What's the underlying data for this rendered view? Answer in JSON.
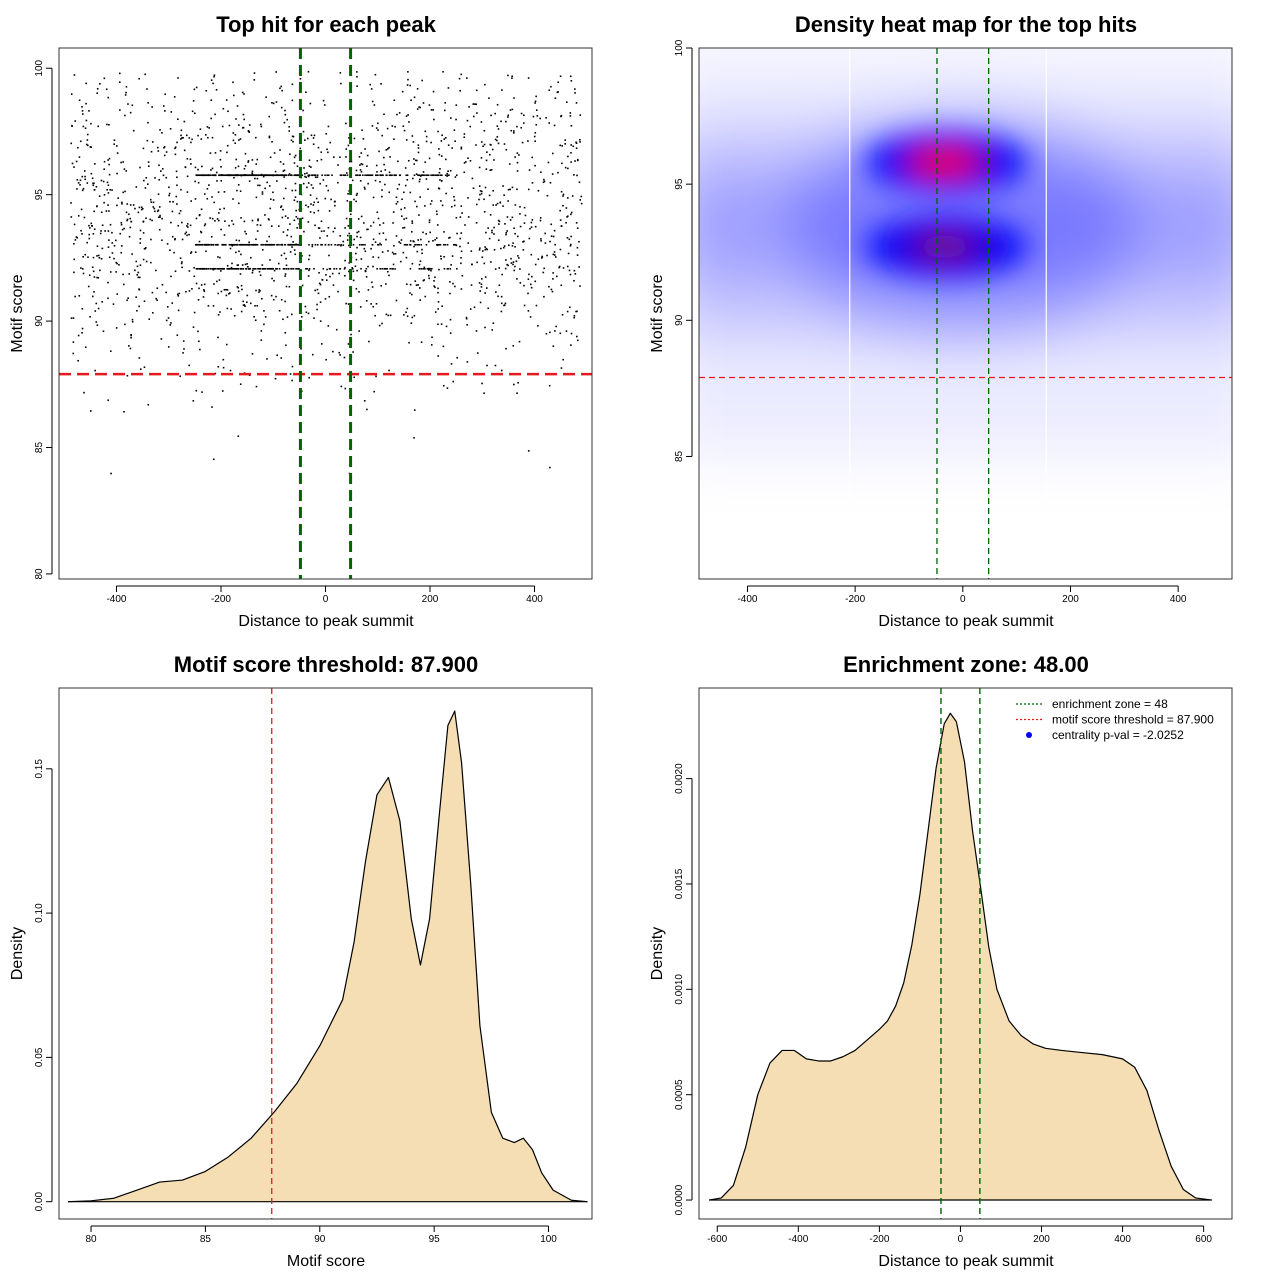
{
  "chart_data": [
    {
      "type": "scatter",
      "title": "Top hit for each peak",
      "xlabel": "Distance to peak summit",
      "ylabel": "Motif score",
      "xlim": [
        -510,
        510
      ],
      "ylim": [
        79.8,
        100.8
      ],
      "xticks": [
        -400,
        -200,
        0,
        200,
        400
      ],
      "yticks": [
        80,
        85,
        90,
        95,
        100
      ],
      "score_threshold": 87.9,
      "zone_lines": [
        -48,
        48
      ],
      "point_count": 2400,
      "score_clusters": [
        92.1,
        93.05,
        95.8
      ],
      "threshold_color": "#e41a1c",
      "zone_color": "#006400",
      "point_color": "#000000"
    },
    {
      "type": "heatmap",
      "title": "Density heat map for the top hits",
      "xlabel": "Distance to peak summit",
      "ylabel": "Motif score",
      "xlim": [
        -490,
        500
      ],
      "ylim": [
        80.5,
        100
      ],
      "xticks": [
        -400,
        -200,
        0,
        200,
        400
      ],
      "yticks": [
        85,
        90,
        95,
        100
      ],
      "hotspots": [
        {
          "x": -30,
          "y": 95.8,
          "peak": "red"
        },
        {
          "x": -30,
          "y": 92.7,
          "peak": "dark-red"
        }
      ],
      "score_threshold": 87.9,
      "zone_lines": [
        -48,
        48
      ],
      "white_lines": [
        -210,
        155
      ],
      "colors": [
        "#ffffff",
        "#0000ff",
        "#ff0000"
      ]
    },
    {
      "type": "area",
      "title": "Motif score threshold: 87.900",
      "xlabel": "Motif score",
      "ylabel": "Density",
      "xlim": [
        78.6,
        101.9
      ],
      "ylim": [
        -0.006,
        0.178
      ],
      "xticks": [
        80,
        85,
        90,
        95,
        100
      ],
      "yticks": [
        0.0,
        0.05,
        0.1,
        0.15
      ],
      "ytick_labels": [
        "0.00",
        "0.05",
        "0.10",
        "0.15"
      ],
      "threshold": 87.9,
      "fill_color": "#f5deb3",
      "points": [
        [
          79.0,
          0.0
        ],
        [
          80.0,
          0.0003
        ],
        [
          81.0,
          0.0012
        ],
        [
          82.0,
          0.004
        ],
        [
          83.0,
          0.0068
        ],
        [
          84.0,
          0.0075
        ],
        [
          85.0,
          0.0105
        ],
        [
          86.0,
          0.0155
        ],
        [
          87.0,
          0.022
        ],
        [
          88.0,
          0.031
        ],
        [
          89.0,
          0.041
        ],
        [
          90.0,
          0.054
        ],
        [
          91.0,
          0.07
        ],
        [
          91.5,
          0.09
        ],
        [
          92.0,
          0.118
        ],
        [
          92.5,
          0.141
        ],
        [
          93.0,
          0.147
        ],
        [
          93.5,
          0.132
        ],
        [
          94.0,
          0.098
        ],
        [
          94.4,
          0.082
        ],
        [
          94.8,
          0.098
        ],
        [
          95.2,
          0.132
        ],
        [
          95.6,
          0.165
        ],
        [
          95.9,
          0.17
        ],
        [
          96.2,
          0.152
        ],
        [
          96.6,
          0.11
        ],
        [
          97.0,
          0.061
        ],
        [
          97.5,
          0.031
        ],
        [
          98.0,
          0.022
        ],
        [
          98.5,
          0.0205
        ],
        [
          98.9,
          0.022
        ],
        [
          99.3,
          0.018
        ],
        [
          99.7,
          0.01
        ],
        [
          100.2,
          0.004
        ],
        [
          101.0,
          0.0005
        ],
        [
          101.7,
          0.0
        ]
      ]
    },
    {
      "type": "area",
      "title": "Enrichment zone: 48.00",
      "xlabel": "Distance to peak summit",
      "ylabel": "Density",
      "xlim": [
        -645,
        670
      ],
      "ylim": [
        -9e-05,
        0.00243
      ],
      "xticks": [
        -600,
        -400,
        -200,
        0,
        200,
        400,
        600
      ],
      "yticks": [
        0.0,
        0.0005,
        0.001,
        0.0015,
        0.002
      ],
      "ytick_labels": [
        "0.0000",
        "0.0005",
        "0.0010",
        "0.0015",
        "0.0020"
      ],
      "zone_lines": [
        -48,
        48
      ],
      "fill_color": "#f5deb3",
      "legend": [
        {
          "label": "enrichment zone = 48",
          "color": "#006400",
          "style": "dotted-line"
        },
        {
          "label": "motif score threshold = 87.900",
          "color": "#e41a1c",
          "style": "dotted-line"
        },
        {
          "label": "centrality p-val = -2.0252",
          "color": "#0000ff",
          "style": "point"
        }
      ],
      "legend_position": "top-right",
      "points": [
        [
          -620,
          0.0
        ],
        [
          -590,
          1e-05
        ],
        [
          -560,
          7e-05
        ],
        [
          -530,
          0.00025
        ],
        [
          -500,
          0.0005
        ],
        [
          -470,
          0.00065
        ],
        [
          -440,
          0.00071
        ],
        [
          -410,
          0.00071
        ],
        [
          -380,
          0.00067
        ],
        [
          -350,
          0.00066
        ],
        [
          -320,
          0.00066
        ],
        [
          -290,
          0.00068
        ],
        [
          -260,
          0.00071
        ],
        [
          -230,
          0.00076
        ],
        [
          -200,
          0.00081
        ],
        [
          -180,
          0.00085
        ],
        [
          -160,
          0.00092
        ],
        [
          -140,
          0.00103
        ],
        [
          -120,
          0.00121
        ],
        [
          -100,
          0.00145
        ],
        [
          -80,
          0.00175
        ],
        [
          -60,
          0.00205
        ],
        [
          -40,
          0.00226
        ],
        [
          -25,
          0.00231
        ],
        [
          -10,
          0.00227
        ],
        [
          10,
          0.00208
        ],
        [
          30,
          0.00175
        ],
        [
          50,
          0.00148
        ],
        [
          70,
          0.0012
        ],
        [
          90,
          0.001
        ],
        [
          120,
          0.00085
        ],
        [
          150,
          0.00078
        ],
        [
          180,
          0.00074
        ],
        [
          210,
          0.00072
        ],
        [
          250,
          0.00071
        ],
        [
          300,
          0.0007
        ],
        [
          350,
          0.00069
        ],
        [
          400,
          0.00067
        ],
        [
          430,
          0.00063
        ],
        [
          460,
          0.00052
        ],
        [
          490,
          0.00033
        ],
        [
          520,
          0.00016
        ],
        [
          550,
          5e-05
        ],
        [
          580,
          1e-05
        ],
        [
          620,
          0.0
        ]
      ]
    }
  ]
}
